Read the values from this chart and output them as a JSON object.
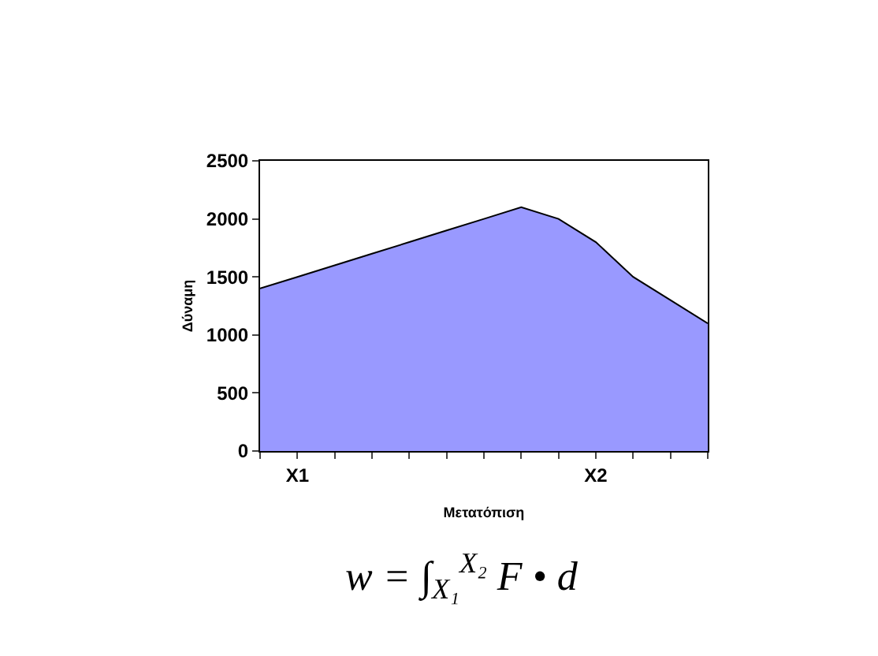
{
  "chart_data": {
    "type": "area",
    "xlabel": "Μετατόπιση",
    "ylabel": "Δύναμη",
    "categories": [
      null,
      "X1",
      null,
      null,
      null,
      null,
      null,
      null,
      null,
      "X2",
      null,
      null,
      null
    ],
    "values": [
      1400,
      1500,
      1600,
      1700,
      1800,
      1900,
      2000,
      2100,
      2000,
      1800,
      1500,
      1300,
      1100
    ],
    "color": "#9999ff",
    "ylim": [
      0,
      2500
    ],
    "yticks": [
      0,
      500,
      1000,
      1500,
      2000,
      2500
    ],
    "annotations": [
      "w = ∫$_{X₁}$$^{X₂}$ F • d"
    ]
  }
}
